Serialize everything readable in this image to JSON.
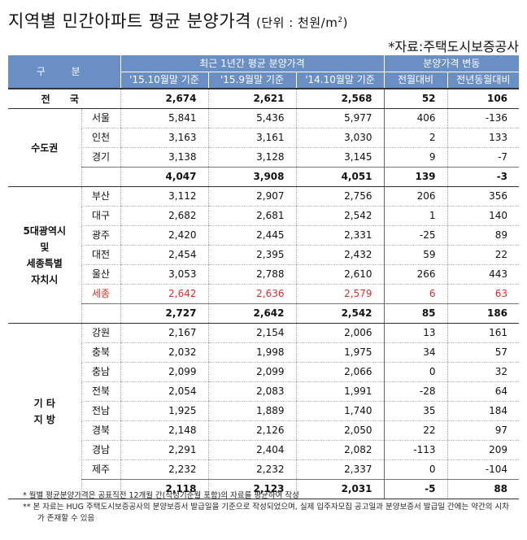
{
  "title": "지역별 민간아파트 평균 분양가격",
  "unit_prefix": "(단위 : 천원/m",
  "unit_sup": "2",
  "unit_suffix": ")",
  "source": "*자료:주택도시보증공사",
  "header": {
    "division": "구 분",
    "recent_group": "최근 1년간 평균 분양가격",
    "change_group": "분양가격 변동",
    "cols": [
      "'15.10월말 기준",
      "'15.9월말 기준",
      "'14.10월말 기준",
      "전월대비",
      "전년동월대비"
    ]
  },
  "national": {
    "label": "전 국",
    "values": [
      "2,674",
      "2,621",
      "2,568",
      "52",
      "106"
    ]
  },
  "groups": [
    {
      "label": "수도권",
      "rows": [
        {
          "name": "서울",
          "values": [
            "5,841",
            "5,436",
            "5,977",
            "406",
            "-136"
          ]
        },
        {
          "name": "인천",
          "values": [
            "3,163",
            "3,161",
            "3,030",
            "2",
            "133"
          ]
        },
        {
          "name": "경기",
          "values": [
            "3,138",
            "3,128",
            "3,145",
            "9",
            "-7"
          ]
        }
      ],
      "total": [
        "4,047",
        "3,908",
        "4,051",
        "139",
        "-3"
      ]
    },
    {
      "label": "5대광역시 및 세종특별 자치시",
      "label_lines": [
        "5대광역시",
        "및",
        "세종특별",
        "자치시"
      ],
      "rows": [
        {
          "name": "부산",
          "values": [
            "3,112",
            "2,907",
            "2,756",
            "206",
            "356"
          ]
        },
        {
          "name": "대구",
          "values": [
            "2,682",
            "2,681",
            "2,542",
            "1",
            "140"
          ]
        },
        {
          "name": "광주",
          "values": [
            "2,420",
            "2,445",
            "2,331",
            "-25",
            "89"
          ]
        },
        {
          "name": "대전",
          "values": [
            "2,454",
            "2,395",
            "2,432",
            "59",
            "22"
          ]
        },
        {
          "name": "울산",
          "values": [
            "3,053",
            "2,788",
            "2,610",
            "266",
            "443"
          ]
        },
        {
          "name": "세종",
          "values": [
            "2,642",
            "2,636",
            "2,579",
            "6",
            "63"
          ],
          "highlight": true
        }
      ],
      "total": [
        "2,727",
        "2,642",
        "2,542",
        "85",
        "186"
      ]
    },
    {
      "label": "기 타 지 방",
      "label_lines": [
        "기 타",
        "지 방"
      ],
      "rows": [
        {
          "name": "강원",
          "values": [
            "2,167",
            "2,154",
            "2,006",
            "13",
            "161"
          ]
        },
        {
          "name": "충북",
          "values": [
            "2,032",
            "1,998",
            "1,975",
            "34",
            "57"
          ]
        },
        {
          "name": "충남",
          "values": [
            "2,099",
            "2,099",
            "2,066",
            "0",
            "32"
          ]
        },
        {
          "name": "전북",
          "values": [
            "2,054",
            "2,083",
            "1,991",
            "-28",
            "64"
          ]
        },
        {
          "name": "전남",
          "values": [
            "1,925",
            "1,889",
            "1,740",
            "35",
            "184"
          ]
        },
        {
          "name": "경북",
          "values": [
            "2,148",
            "2,126",
            "2,050",
            "22",
            "97"
          ]
        },
        {
          "name": "경남",
          "values": [
            "2,291",
            "2,404",
            "2,082",
            "-113",
            "209"
          ]
        },
        {
          "name": "제주",
          "values": [
            "2,232",
            "2,232",
            "2,337",
            "0",
            "-104"
          ]
        }
      ],
      "total": [
        "2,118",
        "2,123",
        "2,031",
        "-5",
        "88"
      ]
    }
  ],
  "notes": [
    "* 월별 평균분양가격은 공표직전 12개월 간(작성기준월 포함)의 자료를 평균하여 작성",
    "** 본 자료는 HUG 주택도시보증공사의 분양보증서 발급일을 기준으로 작성되었으며, 실제 입주자모집 공고일과 분양보증서 발급일 간에는 약간의 시차가 존재할 수 있음"
  ],
  "colors": {
    "header_bg": "#6a8fc4",
    "highlight": "#d9302b"
  }
}
